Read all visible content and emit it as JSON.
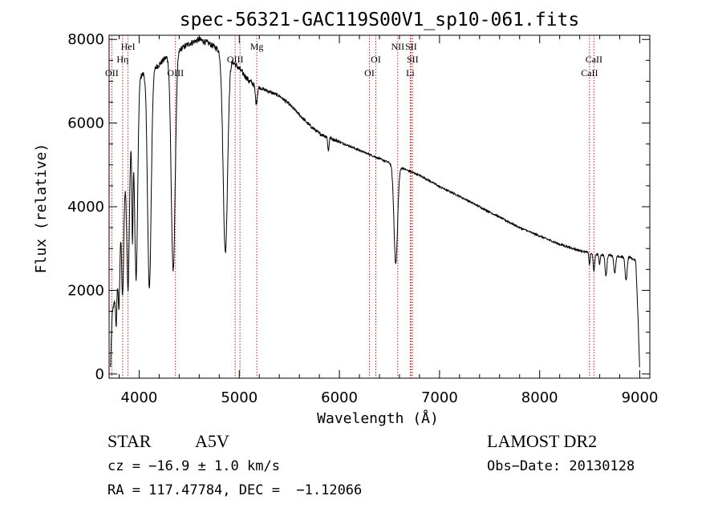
{
  "chart_data": {
    "type": "line",
    "title": "spec-56321-GAC119S00V1_sp10-061.fits",
    "xlabel": "Wavelength (Å)",
    "ylabel": "Flux (relative)",
    "xlim": [
      3700,
      9100
    ],
    "ylim": [
      -100,
      8100
    ],
    "x_ticks": [
      4000,
      5000,
      6000,
      7000,
      8000,
      9000
    ],
    "y_ticks": [
      0,
      2000,
      4000,
      6000,
      8000
    ],
    "grid": false,
    "continuum": [
      [
        3715,
        200
      ],
      [
        3730,
        1400
      ],
      [
        3750,
        1700
      ],
      [
        3780,
        2200
      ],
      [
        3800,
        3200
      ],
      [
        3830,
        4000
      ],
      [
        3860,
        4600
      ],
      [
        3900,
        5300
      ],
      [
        3950,
        6200
      ],
      [
        4000,
        7100
      ],
      [
        4050,
        7200
      ],
      [
        4100,
        7250
      ],
      [
        4150,
        7300
      ],
      [
        4200,
        7400
      ],
      [
        4300,
        7650
      ],
      [
        4400,
        7750
      ],
      [
        4500,
        7900
      ],
      [
        4600,
        8000
      ],
      [
        4700,
        7900
      ],
      [
        4800,
        7750
      ],
      [
        4900,
        7550
      ],
      [
        5000,
        7300
      ],
      [
        5100,
        7000
      ],
      [
        5200,
        6850
      ],
      [
        5300,
        6750
      ],
      [
        5400,
        6650
      ],
      [
        5500,
        6450
      ],
      [
        5600,
        6200
      ],
      [
        5700,
        5950
      ],
      [
        5800,
        5750
      ],
      [
        5900,
        5650
      ],
      [
        6000,
        5550
      ],
      [
        6100,
        5450
      ],
      [
        6200,
        5350
      ],
      [
        6300,
        5250
      ],
      [
        6400,
        5150
      ],
      [
        6500,
        5050
      ],
      [
        6600,
        4950
      ],
      [
        6700,
        4850
      ],
      [
        6800,
        4750
      ],
      [
        6900,
        4620
      ],
      [
        7000,
        4480
      ],
      [
        7200,
        4250
      ],
      [
        7400,
        4000
      ],
      [
        7600,
        3750
      ],
      [
        7800,
        3500
      ],
      [
        8000,
        3300
      ],
      [
        8200,
        3100
      ],
      [
        8400,
        2950
      ],
      [
        8500,
        2900
      ],
      [
        8600,
        2850
      ],
      [
        8700,
        2850
      ],
      [
        8800,
        2800
      ],
      [
        8900,
        2800
      ],
      [
        8960,
        2700
      ],
      [
        8985,
        1200
      ],
      [
        9000,
        0
      ]
    ],
    "absorption_lines": [
      {
        "center": 3770,
        "depth": 0.45,
        "width": 6
      },
      {
        "center": 3798,
        "depth": 0.5,
        "width": 8
      },
      {
        "center": 3835,
        "depth": 0.55,
        "width": 10
      },
      {
        "center": 3889,
        "depth": 0.6,
        "width": 12
      },
      {
        "center": 3933,
        "depth": 0.45,
        "width": 6
      },
      {
        "center": 3970,
        "depth": 0.65,
        "width": 15
      },
      {
        "center": 4102,
        "depth": 0.72,
        "width": 18
      },
      {
        "center": 4340,
        "depth": 0.68,
        "width": 20
      },
      {
        "center": 4861,
        "depth": 0.62,
        "width": 22
      },
      {
        "center": 5170,
        "depth": 0.06,
        "width": 10
      },
      {
        "center": 5890,
        "depth": 0.06,
        "width": 6
      },
      {
        "center": 6563,
        "depth": 0.47,
        "width": 18
      },
      {
        "center": 8498,
        "depth": 0.1,
        "width": 6
      },
      {
        "center": 8542,
        "depth": 0.14,
        "width": 8
      },
      {
        "center": 8598,
        "depth": 0.08,
        "width": 6
      },
      {
        "center": 8662,
        "depth": 0.18,
        "width": 9
      },
      {
        "center": 8750,
        "depth": 0.15,
        "width": 9
      },
      {
        "center": 8863,
        "depth": 0.2,
        "width": 10
      }
    ],
    "marker_lines": [
      {
        "label": "OII",
        "x": 3727,
        "row": 3
      },
      {
        "label": "Hη",
        "x": 3835,
        "row": 2
      },
      {
        "label": "HeI",
        "x": 3889,
        "row": 1
      },
      {
        "label": "OIII",
        "x": 4363,
        "row": 3
      },
      {
        "label": "OIII",
        "x": 4959,
        "row": 2
      },
      {
        "label": "",
        "x": 5007,
        "row": 2
      },
      {
        "label": "Mg",
        "x": 5175,
        "row": 1
      },
      {
        "label": "OI",
        "x": 6300,
        "row": 3
      },
      {
        "label": "OI",
        "x": 6364,
        "row": 2
      },
      {
        "label": "NII",
        "x": 6583,
        "row": 1
      },
      {
        "label": "SII",
        "x": 6716,
        "row": 1
      },
      {
        "label": "SII",
        "x": 6731,
        "row": 2
      },
      {
        "label": "Li",
        "x": 6708,
        "row": 3
      },
      {
        "label": "CaII",
        "x": 8498,
        "row": 3
      },
      {
        "label": "CaII",
        "x": 8542,
        "row": 2
      }
    ]
  },
  "info": {
    "class": "STAR",
    "subclass": "A5V",
    "survey": "LAMOST DR2",
    "cz": "cz = −16.9 ± 1.0 km/s",
    "obs_date": "Obs−Date: 20130128",
    "radec": "RA = 117.47784, DEC =  −1.12066"
  },
  "colors": {
    "spectrum": "#000000",
    "marker_line": "#b22222"
  }
}
